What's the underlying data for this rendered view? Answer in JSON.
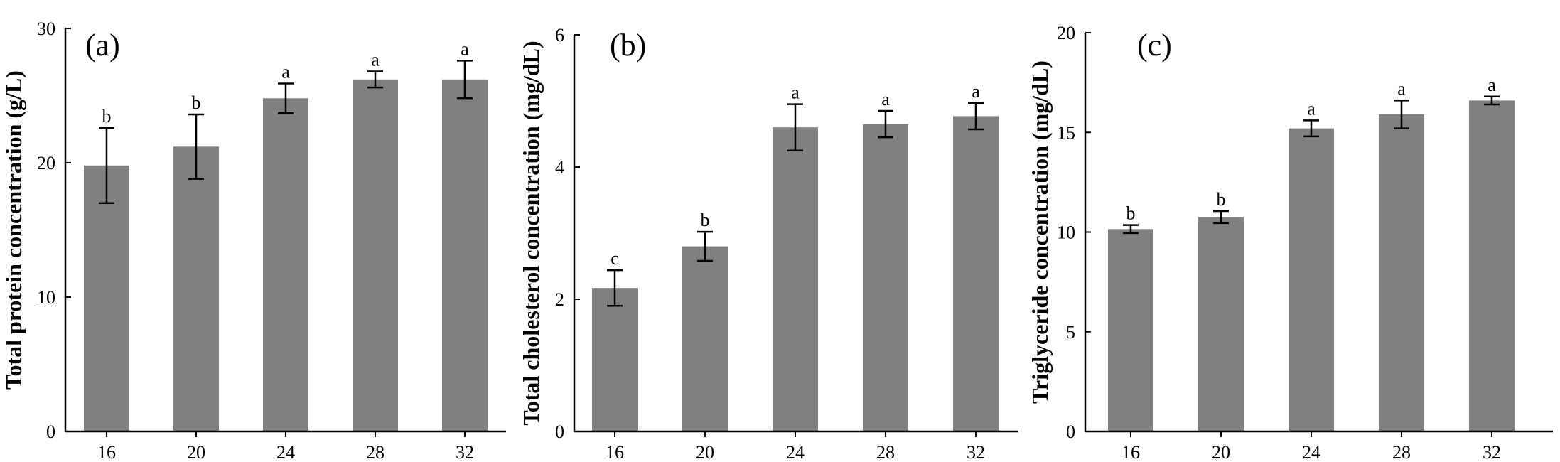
{
  "chart_data": [
    {
      "type": "bar",
      "panel_label": "(a)",
      "categories": [
        "16",
        "20",
        "24",
        "28",
        "32"
      ],
      "values": [
        19.8,
        21.2,
        24.8,
        26.2,
        26.2
      ],
      "errors": [
        2.8,
        2.4,
        1.1,
        0.6,
        1.4
      ],
      "significance": [
        "b",
        "b",
        "a",
        "a",
        "a"
      ],
      "ylabel": "Total protein concentration (g/L)",
      "xlabel": "",
      "ylim": [
        0,
        30
      ],
      "yticks": [
        0,
        10,
        20,
        30
      ],
      "bar_color": "#808080"
    },
    {
      "type": "bar",
      "panel_label": "(b)",
      "categories": [
        "16",
        "20",
        "24",
        "28",
        "32"
      ],
      "values": [
        2.17,
        2.8,
        4.6,
        4.65,
        4.77
      ],
      "errors": [
        0.27,
        0.22,
        0.35,
        0.2,
        0.2
      ],
      "significance": [
        "c",
        "b",
        "a",
        "a",
        "a"
      ],
      "ylabel": "Total cholesterol concentration (mg/dL)",
      "xlabel": "",
      "ylim": [
        0,
        6
      ],
      "yticks": [
        0,
        2,
        4,
        6
      ],
      "bar_color": "#808080"
    },
    {
      "type": "bar",
      "panel_label": "(c)",
      "categories": [
        "16",
        "20",
        "24",
        "28",
        "32"
      ],
      "values": [
        10.15,
        10.75,
        15.2,
        15.9,
        16.6
      ],
      "errors": [
        0.2,
        0.3,
        0.4,
        0.7,
        0.2
      ],
      "significance": [
        "b",
        "b",
        "a",
        "a",
        "a"
      ],
      "ylabel": "Triglyceride concentration (mg/dL)",
      "xlabel": "",
      "ylim": [
        0,
        20
      ],
      "yticks": [
        0,
        5,
        10,
        15,
        20
      ],
      "bar_color": "#808080"
    }
  ]
}
